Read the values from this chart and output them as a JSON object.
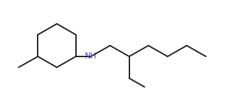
{
  "background_color": "#ffffff",
  "line_color": "#1a1a1a",
  "nh_color": "#4444aa",
  "line_width": 1.4,
  "figsize": [
    3.52,
    1.47
  ],
  "dpi": 100,
  "nh_text": "NH",
  "nh_fontsize": 8.5
}
